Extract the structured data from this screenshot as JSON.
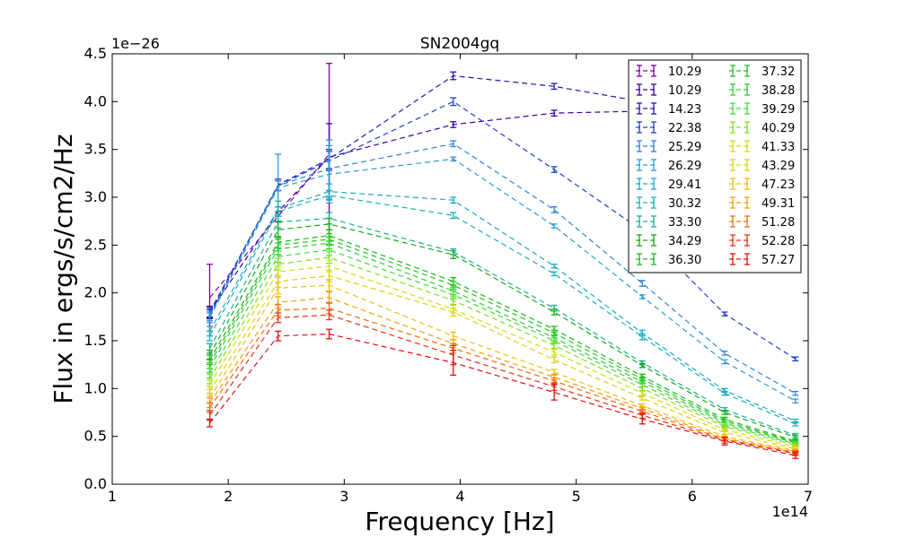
{
  "chart_data": {
    "type": "line",
    "title": "SN2004gq",
    "xlabel": "Frequency [Hz]",
    "ylabel": "Flux in ergs/s/cm2/Hz",
    "x_offset_label": "1e14",
    "y_offset_label": "1e−26",
    "xlim": [
      1,
      7
    ],
    "ylim": [
      0,
      4.5
    ],
    "x_ticks": [
      1,
      2,
      3,
      4,
      5,
      6,
      7
    ],
    "y_ticks": [
      0.0,
      0.5,
      1.0,
      1.5,
      2.0,
      2.5,
      3.0,
      3.5,
      4.0,
      4.5
    ],
    "x_tick_labels": [
      "1",
      "2",
      "3",
      "4",
      "5",
      "6",
      "7"
    ],
    "y_tick_labels": [
      "0.0",
      "0.5",
      "1.0",
      "1.5",
      "2.0",
      "2.5",
      "3.0",
      "3.5",
      "4.0",
      "4.5"
    ],
    "grid": false,
    "legend_position": "top-right",
    "legend_columns": 2,
    "line_style": "dashed",
    "x": [
      1.84,
      2.43,
      2.87,
      3.94,
      4.81,
      5.57,
      6.28,
      6.89
    ],
    "series": [
      {
        "name": "10.29",
        "color": "#7f00b2",
        "values": [
          1.95,
          2.8,
          3.45,
          null,
          null,
          null,
          null,
          null
        ],
        "errors": [
          0.35,
          0.05,
          0.95,
          null,
          null,
          null,
          null,
          null
        ]
      },
      {
        "name": "10.29",
        "color": "#3a00a8",
        "values": [
          1.8,
          2.85,
          3.42,
          3.76,
          3.88,
          3.9,
          null,
          null
        ],
        "errors": [
          0.06,
          0.05,
          0.35,
          0.03,
          0.03,
          0.03,
          null,
          null
        ]
      },
      {
        "name": "14.23",
        "color": "#1a1ab0",
        "values": [
          1.78,
          3.13,
          3.4,
          4.27,
          4.16,
          4.0,
          null,
          null
        ],
        "errors": [
          0.05,
          0.06,
          0.1,
          0.04,
          0.03,
          0.03,
          null,
          null
        ]
      },
      {
        "name": "22.38",
        "color": "#1f40c8",
        "values": [
          1.8,
          3.12,
          3.38,
          4.0,
          3.29,
          2.65,
          1.78,
          1.31
        ],
        "errors": [
          0.05,
          0.05,
          0.1,
          0.04,
          0.03,
          0.03,
          0.02,
          0.02
        ]
      },
      {
        "name": "25.29",
        "color": "#2c86d6",
        "values": [
          1.76,
          3.12,
          3.3,
          3.56,
          2.87,
          2.1,
          1.37,
          0.95
        ],
        "errors": [
          0.05,
          0.05,
          0.3,
          0.03,
          0.03,
          0.03,
          0.02,
          0.02
        ]
      },
      {
        "name": "26.29",
        "color": "#2a9ad8",
        "values": [
          1.74,
          3.1,
          3.24,
          3.4,
          2.7,
          1.96,
          1.28,
          0.87
        ],
        "errors": [
          0.05,
          0.35,
          0.3,
          0.02,
          0.02,
          0.02,
          0.02,
          0.02
        ]
      },
      {
        "name": "29.41",
        "color": "#1fa7c8",
        "values": [
          1.6,
          2.88,
          3.06,
          2.97,
          2.28,
          1.58,
          0.98,
          0.66
        ],
        "errors": [
          0.05,
          0.08,
          0.08,
          0.03,
          0.02,
          0.03,
          0.02,
          0.02
        ]
      },
      {
        "name": "30.32",
        "color": "#19b0b0",
        "values": [
          1.55,
          2.85,
          3.02,
          2.81,
          2.2,
          1.54,
          0.95,
          0.63
        ],
        "errors": [
          0.05,
          0.05,
          0.05,
          0.03,
          0.02,
          0.03,
          0.02,
          0.02
        ]
      },
      {
        "name": "33.30",
        "color": "#1ab096",
        "values": [
          1.42,
          2.74,
          2.78,
          2.43,
          1.84,
          1.27,
          0.78,
          0.51
        ],
        "errors": [
          0.05,
          0.06,
          0.06,
          0.03,
          0.03,
          0.02,
          0.02,
          0.02
        ]
      },
      {
        "name": "34.29",
        "color": "#18a818",
        "values": [
          1.35,
          2.66,
          2.72,
          2.4,
          1.8,
          1.24,
          0.75,
          0.49
        ],
        "errors": [
          0.05,
          0.08,
          0.06,
          0.04,
          0.03,
          0.02,
          0.02,
          0.02
        ]
      },
      {
        "name": "36.30",
        "color": "#1cb81c",
        "values": [
          1.3,
          2.53,
          2.6,
          2.12,
          1.62,
          1.13,
          0.68,
          0.45
        ],
        "errors": [
          0.05,
          0.06,
          0.06,
          0.04,
          0.03,
          0.02,
          0.02,
          0.02
        ]
      },
      {
        "name": "37.32",
        "color": "#24c424",
        "values": [
          1.26,
          2.5,
          2.56,
          2.08,
          1.58,
          1.1,
          0.66,
          0.44
        ],
        "errors": [
          0.05,
          0.06,
          0.06,
          0.04,
          0.03,
          0.02,
          0.02,
          0.02
        ]
      },
      {
        "name": "38.28",
        "color": "#30d030",
        "values": [
          1.22,
          2.46,
          2.52,
          2.02,
          1.53,
          1.07,
          0.64,
          0.43
        ],
        "errors": [
          0.05,
          0.06,
          0.06,
          0.04,
          0.03,
          0.02,
          0.02,
          0.02
        ]
      },
      {
        "name": "39.29",
        "color": "#44dc40",
        "values": [
          1.16,
          2.38,
          2.45,
          1.98,
          1.5,
          1.04,
          0.62,
          0.42
        ],
        "errors": [
          0.05,
          0.06,
          0.06,
          0.04,
          0.03,
          0.02,
          0.02,
          0.02
        ]
      },
      {
        "name": "40.29",
        "color": "#80e020",
        "values": [
          1.1,
          2.3,
          2.37,
          1.92,
          1.45,
          1.0,
          0.6,
          0.41
        ],
        "errors": [
          0.05,
          0.06,
          0.06,
          0.04,
          0.03,
          0.02,
          0.02,
          0.02
        ]
      },
      {
        "name": "41.33",
        "color": "#c8e010",
        "values": [
          1.04,
          2.22,
          2.28,
          1.83,
          1.38,
          0.95,
          0.57,
          0.39
        ],
        "errors": [
          0.05,
          0.06,
          0.06,
          0.04,
          0.03,
          0.02,
          0.02,
          0.02
        ]
      },
      {
        "name": "43.29",
        "color": "#e0d010",
        "values": [
          0.97,
          2.12,
          2.18,
          1.8,
          1.3,
          0.9,
          0.54,
          0.37
        ],
        "errors": [
          0.05,
          0.06,
          0.06,
          0.04,
          0.03,
          0.02,
          0.02,
          0.02
        ]
      },
      {
        "name": "47.23",
        "color": "#f0c010",
        "values": [
          0.9,
          2.05,
          2.08,
          1.55,
          1.17,
          0.82,
          0.5,
          0.35
        ],
        "errors": [
          0.05,
          0.06,
          0.06,
          0.04,
          0.03,
          0.02,
          0.02,
          0.02
        ]
      },
      {
        "name": "49.31",
        "color": "#f0a010",
        "values": [
          0.85,
          1.9,
          1.95,
          1.47,
          1.12,
          0.79,
          0.48,
          0.34
        ],
        "errors": [
          0.05,
          0.06,
          0.06,
          0.04,
          0.03,
          0.02,
          0.02,
          0.02
        ]
      },
      {
        "name": "51.28",
        "color": "#f06c10",
        "values": [
          0.8,
          1.82,
          1.84,
          1.42,
          1.08,
          0.76,
          0.47,
          0.33
        ],
        "errors": [
          0.05,
          0.06,
          0.06,
          0.05,
          0.03,
          0.02,
          0.02,
          0.02
        ]
      },
      {
        "name": "52.28",
        "color": "#e83018",
        "values": [
          0.72,
          1.74,
          1.77,
          1.35,
          1.02,
          0.72,
          0.46,
          0.32
        ],
        "errors": [
          0.05,
          0.05,
          0.05,
          0.1,
          0.04,
          0.03,
          0.03,
          0.02
        ]
      },
      {
        "name": "57.27",
        "color": "#e01010",
        "values": [
          0.64,
          1.55,
          1.57,
          1.27,
          0.96,
          0.68,
          0.45,
          0.3
        ],
        "errors": [
          0.04,
          0.05,
          0.05,
          0.13,
          0.08,
          0.05,
          0.04,
          0.03
        ]
      }
    ]
  }
}
